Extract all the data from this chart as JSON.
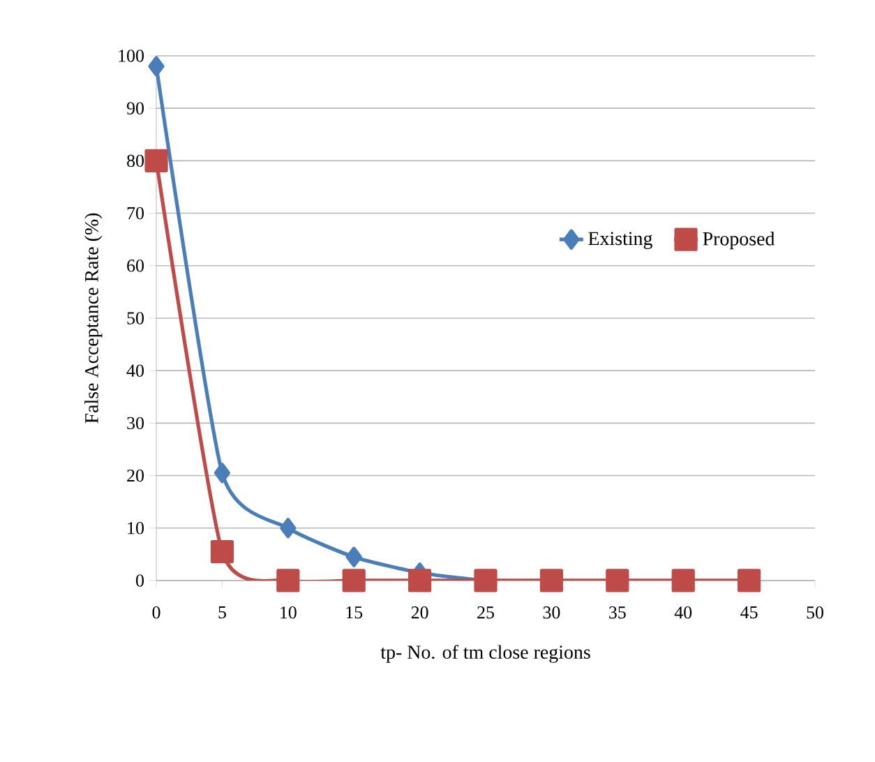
{
  "chart_data": {
    "type": "line",
    "xlabel": "tp- No. of tm close regions",
    "ylabel": "False Acceptance Rate (%)",
    "x": [
      0,
      5,
      10,
      15,
      20,
      25,
      30,
      35,
      40,
      45
    ],
    "series": [
      {
        "name": "Existing",
        "color": "#4a7ebb",
        "marker": "diamond",
        "values": [
          98,
          20.5,
          10,
          4.5,
          1.5,
          0,
          0,
          null,
          null,
          null
        ]
      },
      {
        "name": "Proposed",
        "color": "#be4b48",
        "marker": "square",
        "values": [
          80,
          5.5,
          0,
          0,
          0,
          0,
          0,
          0,
          0,
          0
        ]
      }
    ],
    "xlim": [
      0,
      50
    ],
    "ylim": [
      0,
      100
    ],
    "xticks": [
      0,
      5,
      10,
      15,
      20,
      25,
      30,
      35,
      40,
      45,
      50
    ],
    "yticks": [
      0,
      10,
      20,
      30,
      40,
      50,
      60,
      70,
      80,
      90,
      100
    ],
    "grid": "y",
    "legend": "right"
  }
}
